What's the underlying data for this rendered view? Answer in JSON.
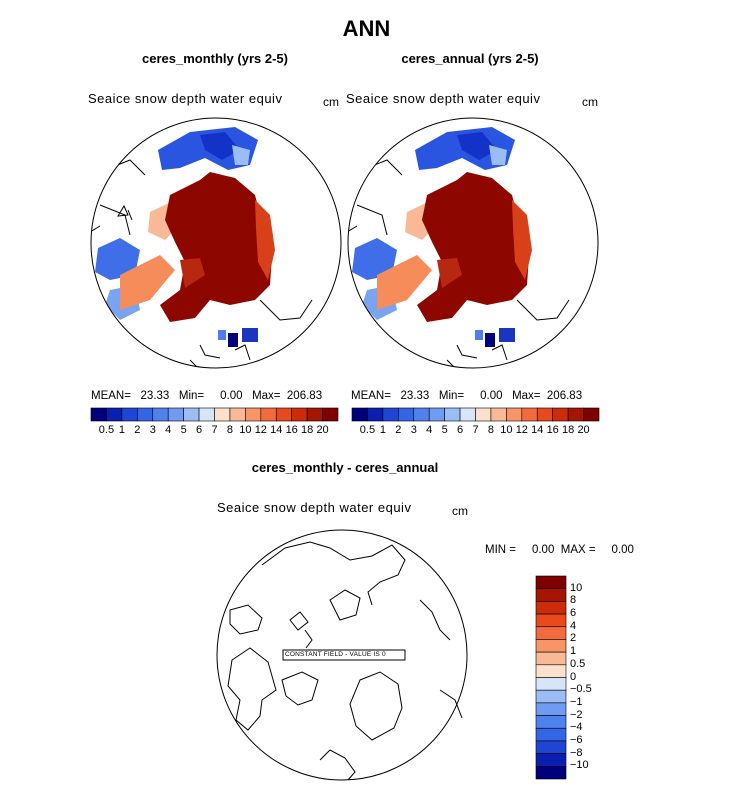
{
  "title": "ANN",
  "panels": [
    {
      "title": "ceres_monthly (yrs 2-5)",
      "field": "Seaice snow depth water equiv",
      "unit": "cm",
      "stats": "MEAN=   23.33   Min=     0.00   Max=  206.83"
    },
    {
      "title": "ceres_annual (yrs 2-5)",
      "field": "Seaice snow depth water equiv",
      "unit": "cm",
      "stats": "MEAN=   23.33   Min=     0.00   Max=  206.83"
    }
  ],
  "diff_panel": {
    "title": "ceres_monthly - ceres_annual",
    "field": "Seaice snow depth water equiv",
    "unit": "cm",
    "stats": "MIN =     0.00  MAX =     0.00",
    "annotation": "CONSTANT FIELD - VALUE IS 0"
  },
  "colorbar_top": {
    "labels": [
      "0.5",
      "1",
      "2",
      "3",
      "4",
      "5",
      "6",
      "7",
      "8",
      "10",
      "12",
      "14",
      "16",
      "18",
      "20"
    ],
    "colors": [
      "#00007f",
      "#0a1fb0",
      "#1f45d6",
      "#3366e6",
      "#5082ee",
      "#6f9cf2",
      "#9bbdf5",
      "#d6e6f8",
      "#fbe0cc",
      "#f9b896",
      "#f79566",
      "#f36a3c",
      "#e84a1c",
      "#cc2c08",
      "#a51500",
      "#7f0000"
    ]
  },
  "colorbar_diff": {
    "labels": [
      "10",
      "8",
      "6",
      "4",
      "2",
      "1",
      "0.5",
      "0",
      "−0.5",
      "−1",
      "−2",
      "−4",
      "−6",
      "−8",
      "−10"
    ],
    "colors": [
      "#7f0000",
      "#a51500",
      "#cc2c08",
      "#e84a1c",
      "#f36a3c",
      "#f79566",
      "#f9b896",
      "#fbe0cc",
      "#d6e6f8",
      "#9bbdf5",
      "#6f9cf2",
      "#5082ee",
      "#3366e6",
      "#1f45d6",
      "#0a1fb0",
      "#00007f"
    ]
  },
  "chart_data": [
    {
      "type": "heatmap",
      "title": "ceres_monthly (yrs 2-5)",
      "variable": "Seaice snow depth water equiv",
      "unit": "cm",
      "projection": "north polar stereographic",
      "mean": 23.33,
      "min": 0.0,
      "max": 206.83,
      "levels": [
        0.5,
        1,
        2,
        3,
        4,
        5,
        6,
        7,
        8,
        10,
        12,
        14,
        16,
        18,
        20
      ]
    },
    {
      "type": "heatmap",
      "title": "ceres_annual (yrs 2-5)",
      "variable": "Seaice snow depth water equiv",
      "unit": "cm",
      "projection": "north polar stereographic",
      "mean": 23.33,
      "min": 0.0,
      "max": 206.83,
      "levels": [
        0.5,
        1,
        2,
        3,
        4,
        5,
        6,
        7,
        8,
        10,
        12,
        14,
        16,
        18,
        20
      ]
    },
    {
      "type": "heatmap",
      "title": "ceres_monthly - ceres_annual",
      "variable": "Seaice snow depth water equiv",
      "unit": "cm",
      "projection": "north polar stereographic",
      "min": 0.0,
      "max": 0.0,
      "constant_value": 0,
      "levels": [
        -10,
        -8,
        -6,
        -4,
        -2,
        -1,
        -0.5,
        0,
        0.5,
        1,
        2,
        4,
        6,
        8,
        10
      ]
    }
  ]
}
